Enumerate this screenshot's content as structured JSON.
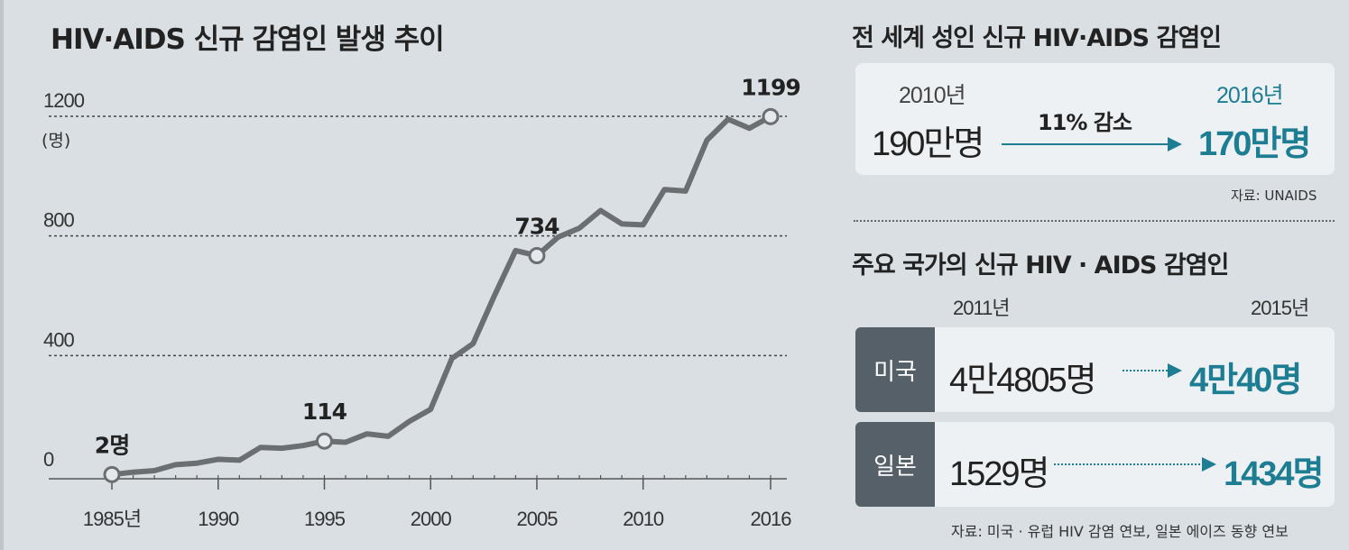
{
  "left_chart": {
    "title": "HIV·AIDS 신규 감염인 발생 추이"
  },
  "chart_data": {
    "type": "line",
    "title": "HIV·AIDS 신규 감염인 발생 추이",
    "ylabel": "(명)",
    "ylim": [
      0,
      1200
    ],
    "yticks": [
      "0",
      "400",
      "800",
      "1200"
    ],
    "ytick_values": [
      0,
      400,
      800,
      1200
    ],
    "xticks": [
      "1985년",
      "1990",
      "1995",
      "2000",
      "2005",
      "2010",
      "2016"
    ],
    "xtick_values": [
      1985,
      1990,
      1995,
      2000,
      2005,
      2010,
      2016
    ],
    "grid": "dotted horizontal at 400, 800, 1200",
    "x": [
      1985,
      1986,
      1987,
      1988,
      1989,
      1990,
      1991,
      1992,
      1993,
      1994,
      1995,
      1996,
      1997,
      1998,
      1999,
      2000,
      2001,
      2002,
      2003,
      2004,
      2005,
      2006,
      2007,
      2008,
      2009,
      2010,
      2011,
      2012,
      2013,
      2014,
      2015,
      2016
    ],
    "values": [
      2,
      10,
      15,
      35,
      40,
      53,
      50,
      93,
      90,
      99,
      114,
      110,
      138,
      130,
      180,
      220,
      390,
      440,
      600,
      751,
      734,
      796,
      826,
      885,
      840,
      837,
      955,
      950,
      1120,
      1190,
      1160,
      1199
    ],
    "annotations": [
      {
        "x": 1985,
        "label": "2명"
      },
      {
        "x": 1995,
        "label": "114"
      },
      {
        "x": 2005,
        "label": "734"
      },
      {
        "x": 2016,
        "label": "1199"
      }
    ],
    "line_color": "#6b6f72"
  },
  "world": {
    "title": "전 세계 성인 신규 HIV·AIDS 감염인",
    "year_from": "2010년",
    "value_from": "190만명",
    "change": "11% 감소",
    "year_to": "2016년",
    "value_to": "170만명",
    "source": "자료: UNAIDS"
  },
  "countries": {
    "title": "주요 국가의 신규 HIV · AIDS 감염인",
    "year_from": "2011년",
    "year_to": "2015년",
    "rows": [
      {
        "name": "미국",
        "from": "4만4805명",
        "to": "4만40명"
      },
      {
        "name": "일본",
        "from": "1529명",
        "to": "1434명"
      }
    ],
    "source": "자료: 미국 · 유럽 HIV 감염 연보, 일본 에이즈 동향 연보"
  },
  "colors": {
    "background": "#d9dfe3",
    "accent": "#1d7d92",
    "line": "#6b6f72",
    "tag": "#566068"
  }
}
